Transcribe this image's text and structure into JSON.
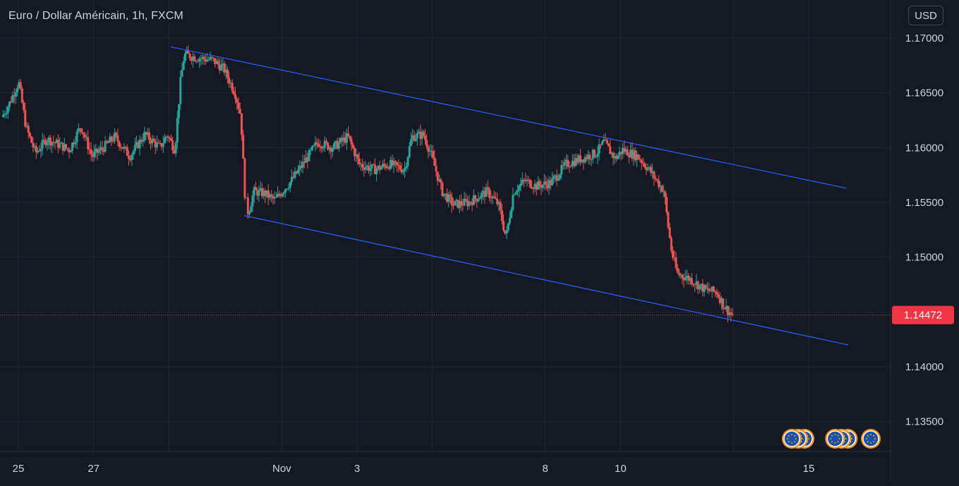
{
  "header": {
    "symbol_title": "Euro / Dollar Américain, 1h, FXCM",
    "currency_button": "USD"
  },
  "colors": {
    "background": "#151924",
    "grid": "#232734",
    "axis_text": "#d1d4dc",
    "up_candle": "#26a69a",
    "down_candle": "#ef5350",
    "trendline": "#2962ff",
    "price_label_bg": "#f23645",
    "event_icon": "#f7931a",
    "event_icon_inner": "#1e4fa8"
  },
  "chart_data": {
    "type": "candlestick",
    "title": "Euro / Dollar Américain, 1h, FXCM",
    "ylim": [
      1.131,
      1.1725
    ],
    "y_ticks": [
      "1.17000",
      "1.16500",
      "1.16000",
      "1.15500",
      "1.15000",
      "1.14000",
      "1.13500"
    ],
    "x_ticks": [
      {
        "label": "25",
        "day": 25.0
      },
      {
        "label": "27",
        "day": 27.0
      },
      {
        "label": "Nov",
        "day": 32.0
      },
      {
        "label": "3",
        "day": 34.0
      },
      {
        "label": "8",
        "day": 39.0
      },
      {
        "label": "10",
        "day": 41.0
      },
      {
        "label": "15",
        "day": 46.0
      }
    ],
    "last_price": "1.14472",
    "last_price_value": 1.14472,
    "path_points": [
      [
        24.6,
        1.1628
      ],
      [
        24.8,
        1.164
      ],
      [
        25.05,
        1.166
      ],
      [
        25.25,
        1.1618
      ],
      [
        25.5,
        1.1595
      ],
      [
        25.8,
        1.1608
      ],
      [
        26.1,
        1.1603
      ],
      [
        26.4,
        1.1598
      ],
      [
        26.7,
        1.162
      ],
      [
        27.0,
        1.1592
      ],
      [
        27.3,
        1.16
      ],
      [
        27.6,
        1.161
      ],
      [
        28.0,
        1.1592
      ],
      [
        28.4,
        1.1612
      ],
      [
        28.8,
        1.16
      ],
      [
        29.0,
        1.1612
      ],
      [
        29.2,
        1.1598
      ],
      [
        29.35,
        1.166
      ],
      [
        29.45,
        1.1685
      ],
      [
        29.8,
        1.1682
      ],
      [
        30.2,
        1.168
      ],
      [
        30.5,
        1.1672
      ],
      [
        30.8,
        1.165
      ],
      [
        30.95,
        1.163
      ],
      [
        31.0,
        1.16
      ],
      [
        31.05,
        1.156
      ],
      [
        31.15,
        1.154
      ],
      [
        31.3,
        1.156
      ],
      [
        31.6,
        1.1558
      ],
      [
        31.85,
        1.1552
      ],
      [
        32.3,
        1.157
      ],
      [
        32.7,
        1.159
      ],
      [
        33.0,
        1.1605
      ],
      [
        33.4,
        1.16
      ],
      [
        33.8,
        1.161
      ],
      [
        34.1,
        1.1585
      ],
      [
        34.5,
        1.158
      ],
      [
        34.9,
        1.1585
      ],
      [
        35.3,
        1.158
      ],
      [
        35.5,
        1.161
      ],
      [
        35.8,
        1.1612
      ],
      [
        36.0,
        1.1595
      ],
      [
        36.3,
        1.156
      ],
      [
        36.6,
        1.1548
      ],
      [
        37.0,
        1.155
      ],
      [
        37.5,
        1.156
      ],
      [
        37.8,
        1.1548
      ],
      [
        38.0,
        1.1518
      ],
      [
        38.2,
        1.156
      ],
      [
        38.5,
        1.157
      ],
      [
        38.8,
        1.1565
      ],
      [
        39.2,
        1.1568
      ],
      [
        39.6,
        1.1585
      ],
      [
        40.0,
        1.159
      ],
      [
        40.4,
        1.1595
      ],
      [
        40.6,
        1.1605
      ],
      [
        40.9,
        1.159
      ],
      [
        41.1,
        1.1598
      ],
      [
        41.5,
        1.1592
      ],
      [
        41.8,
        1.158
      ],
      [
        42.0,
        1.157
      ],
      [
        42.2,
        1.156
      ],
      [
        42.3,
        1.153
      ],
      [
        42.4,
        1.1505
      ],
      [
        42.55,
        1.1485
      ],
      [
        42.9,
        1.148
      ],
      [
        43.1,
        1.1475
      ],
      [
        43.3,
        1.147
      ],
      [
        43.6,
        1.1468
      ],
      [
        43.8,
        1.1455
      ],
      [
        44.0,
        1.1447
      ]
    ],
    "trendlines": [
      {
        "name": "upper-channel",
        "points": [
          [
            29.05,
            1.1692
          ],
          [
            47.0,
            1.1563
          ]
        ]
      },
      {
        "name": "lower-channel",
        "points": [
          [
            31.0,
            1.1538
          ],
          [
            47.05,
            1.142
          ]
        ]
      }
    ],
    "event_icons": [
      {
        "group": 1,
        "day": 45.55,
        "count": 3
      },
      {
        "group": 2,
        "day": 46.7,
        "count": 3
      },
      {
        "group": 3,
        "day": 47.65,
        "count": 1
      }
    ]
  }
}
